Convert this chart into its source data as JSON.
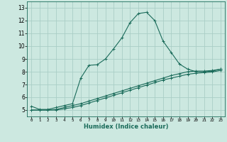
{
  "xlabel": "Humidex (Indice chaleur)",
  "bg_color": "#cce8e0",
  "grid_color": "#aacec6",
  "line_color": "#1a6b5a",
  "xlim": [
    -0.5,
    23.5
  ],
  "ylim": [
    4.5,
    13.5
  ],
  "xticks": [
    0,
    1,
    2,
    3,
    4,
    5,
    6,
    7,
    8,
    9,
    10,
    11,
    12,
    13,
    14,
    15,
    16,
    17,
    18,
    19,
    20,
    21,
    22,
    23
  ],
  "yticks": [
    5,
    6,
    7,
    8,
    9,
    10,
    11,
    12,
    13
  ],
  "curve1_x": [
    0,
    1,
    2,
    3,
    4,
    5,
    6,
    7,
    8,
    9,
    10,
    11,
    12,
    13,
    14,
    15,
    16,
    17,
    18,
    19,
    20,
    21,
    22,
    23
  ],
  "curve1_y": [
    5.3,
    5.05,
    5.05,
    5.2,
    5.35,
    5.5,
    7.5,
    8.5,
    8.55,
    9.0,
    9.8,
    10.65,
    11.85,
    12.55,
    12.65,
    12.0,
    10.4,
    9.5,
    8.6,
    8.2,
    8.0,
    8.0,
    8.05,
    8.2
  ],
  "curve2_x": [
    0,
    1,
    2,
    3,
    4,
    5,
    6,
    7,
    8,
    9,
    10,
    11,
    12,
    13,
    14,
    15,
    16,
    17,
    18,
    19,
    20,
    21,
    22,
    23
  ],
  "curve2_y": [
    5.0,
    5.0,
    5.0,
    5.05,
    5.2,
    5.35,
    5.5,
    5.7,
    5.9,
    6.1,
    6.3,
    6.5,
    6.7,
    6.9,
    7.1,
    7.3,
    7.5,
    7.7,
    7.85,
    8.0,
    8.05,
    8.05,
    8.1,
    8.2
  ],
  "curve3_x": [
    0,
    1,
    2,
    3,
    4,
    5,
    6,
    7,
    8,
    9,
    10,
    11,
    12,
    13,
    14,
    15,
    16,
    17,
    18,
    19,
    20,
    21,
    22,
    23
  ],
  "curve3_y": [
    5.0,
    5.0,
    5.0,
    5.0,
    5.1,
    5.2,
    5.35,
    5.55,
    5.75,
    5.95,
    6.15,
    6.35,
    6.55,
    6.75,
    6.95,
    7.15,
    7.35,
    7.5,
    7.65,
    7.8,
    7.88,
    7.93,
    7.98,
    8.1
  ]
}
